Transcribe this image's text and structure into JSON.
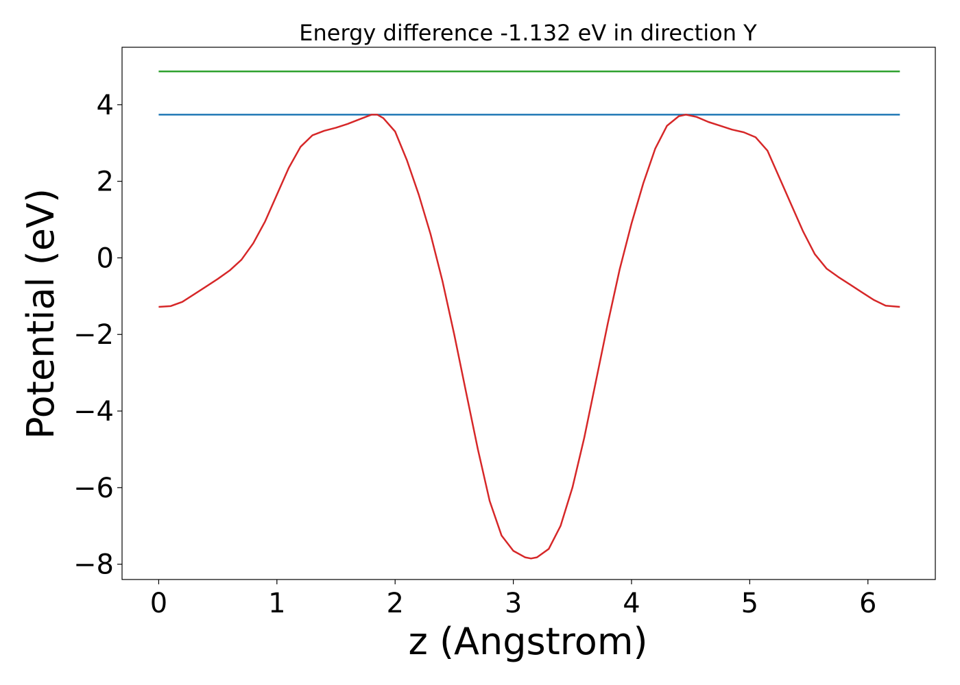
{
  "chart_data": {
    "type": "line",
    "title": "Energy difference -1.132 eV in direction Y",
    "xlabel": "z (Angstrom)",
    "ylabel": "Potential (eV)",
    "xlim": [
      -0.31,
      6.57
    ],
    "ylim": [
      -8.4,
      5.5
    ],
    "xticks": [
      0,
      1,
      2,
      3,
      4,
      5,
      6
    ],
    "xtick_labels": [
      "0",
      "1",
      "2",
      "3",
      "4",
      "5",
      "6"
    ],
    "yticks": [
      4,
      2,
      0,
      -2,
      -4,
      -6,
      -8
    ],
    "ytick_labels": [
      "4",
      "2",
      "0",
      "−2",
      "−4",
      "−6",
      "−8"
    ],
    "grid": false,
    "legend": "none",
    "series": [
      {
        "color": "#2ca02c",
        "points": [
          [
            0,
            4.87
          ],
          [
            6.27,
            4.87
          ]
        ]
      },
      {
        "color": "#1f77b4",
        "points": [
          [
            0,
            3.74
          ],
          [
            6.27,
            3.74
          ]
        ]
      },
      {
        "color": "#d62728",
        "points": [
          [
            0.0,
            -1.28
          ],
          [
            0.1,
            -1.26
          ],
          [
            0.2,
            -1.15
          ],
          [
            0.3,
            -0.95
          ],
          [
            0.4,
            -0.75
          ],
          [
            0.5,
            -0.55
          ],
          [
            0.6,
            -0.33
          ],
          [
            0.7,
            -0.05
          ],
          [
            0.8,
            0.38
          ],
          [
            0.9,
            0.95
          ],
          [
            1.0,
            1.65
          ],
          [
            1.1,
            2.35
          ],
          [
            1.2,
            2.9
          ],
          [
            1.3,
            3.2
          ],
          [
            1.4,
            3.32
          ],
          [
            1.5,
            3.4
          ],
          [
            1.6,
            3.5
          ],
          [
            1.7,
            3.62
          ],
          [
            1.8,
            3.74
          ],
          [
            1.85,
            3.74
          ],
          [
            1.9,
            3.65
          ],
          [
            2.0,
            3.3
          ],
          [
            2.1,
            2.55
          ],
          [
            2.2,
            1.65
          ],
          [
            2.3,
            0.62
          ],
          [
            2.4,
            -0.6
          ],
          [
            2.5,
            -2.0
          ],
          [
            2.6,
            -3.5
          ],
          [
            2.7,
            -5.0
          ],
          [
            2.8,
            -6.35
          ],
          [
            2.9,
            -7.25
          ],
          [
            3.0,
            -7.65
          ],
          [
            3.1,
            -7.82
          ],
          [
            3.15,
            -7.85
          ],
          [
            3.2,
            -7.82
          ],
          [
            3.3,
            -7.6
          ],
          [
            3.4,
            -7.0
          ],
          [
            3.5,
            -6.0
          ],
          [
            3.6,
            -4.7
          ],
          [
            3.7,
            -3.2
          ],
          [
            3.8,
            -1.7
          ],
          [
            3.9,
            -0.3
          ],
          [
            4.0,
            0.9
          ],
          [
            4.1,
            1.95
          ],
          [
            4.2,
            2.85
          ],
          [
            4.3,
            3.45
          ],
          [
            4.4,
            3.7
          ],
          [
            4.46,
            3.74
          ],
          [
            4.55,
            3.68
          ],
          [
            4.65,
            3.55
          ],
          [
            4.75,
            3.45
          ],
          [
            4.85,
            3.35
          ],
          [
            4.95,
            3.28
          ],
          [
            5.05,
            3.15
          ],
          [
            5.15,
            2.8
          ],
          [
            5.25,
            2.1
          ],
          [
            5.35,
            1.4
          ],
          [
            5.45,
            0.7
          ],
          [
            5.55,
            0.1
          ],
          [
            5.65,
            -0.28
          ],
          [
            5.75,
            -0.5
          ],
          [
            5.85,
            -0.7
          ],
          [
            5.95,
            -0.9
          ],
          [
            6.05,
            -1.1
          ],
          [
            6.15,
            -1.25
          ],
          [
            6.27,
            -1.28
          ]
        ]
      }
    ]
  }
}
